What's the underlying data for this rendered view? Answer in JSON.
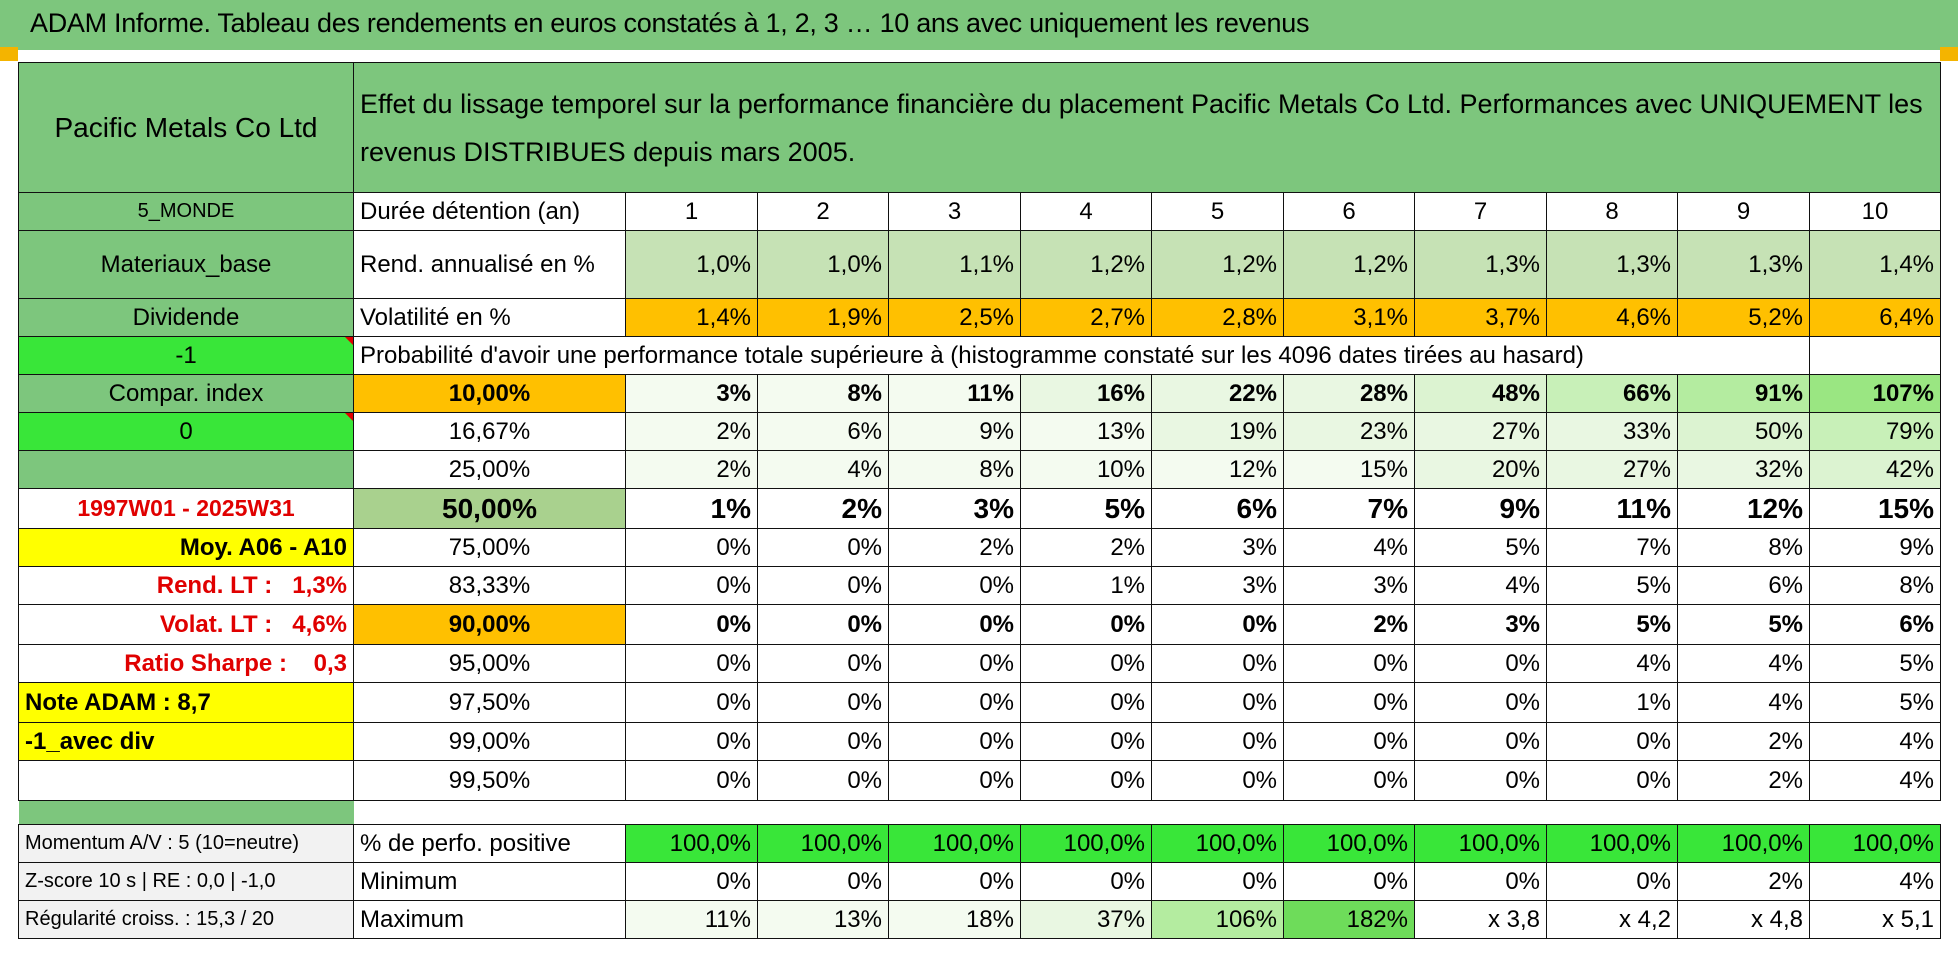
{
  "title": "ADAM Informe. Tableau des rendements en euros constatés à 1, 2, 3 … 10 ans avec uniquement les revenus",
  "header": {
    "name": "Pacific Metals Co Ltd",
    "description": "Effet du lissage temporel sur la performance financière du placement Pacific Metals Co Ltd. Performances avec UNIQUEMENT les revenus DISTRIBUES depuis mars 2005."
  },
  "sidebar": {
    "region": "5_MONDE",
    "sector": "Materiaux_base",
    "type": "Dividende",
    "code1": "-1",
    "compar": "Compar. index",
    "code2": "0",
    "period": "1997W01 - 2025W31",
    "moy": "Moy. A06 - A10",
    "rend_lt_label": "Rend. LT :",
    "rend_lt_value": "1,3%",
    "volat_lt_label": "Volat. LT :",
    "volat_lt_value": "4,6%",
    "sharpe_label": "Ratio Sharpe :",
    "sharpe_value": "0,3",
    "note": "Note ADAM : 8,7",
    "variant": "-1_avec div"
  },
  "rows": {
    "duration_label": "Durée détention (an)",
    "years": [
      "1",
      "2",
      "3",
      "4",
      "5",
      "6",
      "7",
      "8",
      "9",
      "10"
    ],
    "rend_label": "Rend. annualisé en %",
    "rend": [
      "1,0%",
      "1,0%",
      "1,1%",
      "1,2%",
      "1,2%",
      "1,2%",
      "1,3%",
      "1,3%",
      "1,3%",
      "1,4%"
    ],
    "vol_label": "Volatilité en %",
    "vol": [
      "1,4%",
      "1,9%",
      "2,5%",
      "2,7%",
      "2,8%",
      "3,1%",
      "3,7%",
      "4,6%",
      "5,2%",
      "6,4%"
    ],
    "prob_title": "Probabilité d'avoir une performance totale supérieure à (histogramme constaté sur les 4096 dates tirées au hasard)"
  },
  "probabilities": [
    {
      "p": "10,00%",
      "v": [
        "3%",
        "8%",
        "11%",
        "16%",
        "22%",
        "28%",
        "48%",
        "66%",
        "91%",
        "107%"
      ]
    },
    {
      "p": "16,67%",
      "v": [
        "2%",
        "6%",
        "9%",
        "13%",
        "19%",
        "23%",
        "27%",
        "33%",
        "50%",
        "79%"
      ]
    },
    {
      "p": "25,00%",
      "v": [
        "2%",
        "4%",
        "8%",
        "10%",
        "12%",
        "15%",
        "20%",
        "27%",
        "32%",
        "42%"
      ]
    },
    {
      "p": "50,00%",
      "v": [
        "1%",
        "2%",
        "3%",
        "5%",
        "6%",
        "7%",
        "9%",
        "11%",
        "12%",
        "15%"
      ]
    },
    {
      "p": "75,00%",
      "v": [
        "0%",
        "0%",
        "2%",
        "2%",
        "3%",
        "4%",
        "5%",
        "7%",
        "8%",
        "9%"
      ]
    },
    {
      "p": "83,33%",
      "v": [
        "0%",
        "0%",
        "0%",
        "1%",
        "3%",
        "3%",
        "4%",
        "5%",
        "6%",
        "8%"
      ]
    },
    {
      "p": "90,00%",
      "v": [
        "0%",
        "0%",
        "0%",
        "0%",
        "0%",
        "2%",
        "3%",
        "5%",
        "5%",
        "6%"
      ]
    },
    {
      "p": "95,00%",
      "v": [
        "0%",
        "0%",
        "0%",
        "0%",
        "0%",
        "0%",
        "0%",
        "4%",
        "4%",
        "5%"
      ]
    },
    {
      "p": "97,50%",
      "v": [
        "0%",
        "0%",
        "0%",
        "0%",
        "0%",
        "0%",
        "0%",
        "1%",
        "4%",
        "5%"
      ]
    },
    {
      "p": "99,00%",
      "v": [
        "0%",
        "0%",
        "0%",
        "0%",
        "0%",
        "0%",
        "0%",
        "0%",
        "2%",
        "4%"
      ]
    },
    {
      "p": "99,50%",
      "v": [
        "0%",
        "0%",
        "0%",
        "0%",
        "0%",
        "0%",
        "0%",
        "0%",
        "2%",
        "4%"
      ]
    }
  ],
  "bottom": {
    "momentum": "Momentum A/V : 5 (10=neutre)",
    "zscore": "Z-score 10 s | RE : 0,0 | -1,0",
    "regularite": "Régularité croiss. : 15,3 / 20",
    "pos_label": "% de perfo. positive",
    "pos": [
      "100,0%",
      "100,0%",
      "100,0%",
      "100,0%",
      "100,0%",
      "100,0%",
      "100,0%",
      "100,0%",
      "100,0%",
      "100,0%"
    ],
    "min_label": "Minimum",
    "min": [
      "0%",
      "0%",
      "0%",
      "0%",
      "0%",
      "0%",
      "0%",
      "0%",
      "2%",
      "4%"
    ],
    "max_label": "Maximum",
    "max": [
      "11%",
      "13%",
      "18%",
      "37%",
      "106%",
      "182%",
      "x 3,8",
      "x 4,2",
      "x 4,8",
      "x 5,1"
    ]
  }
}
